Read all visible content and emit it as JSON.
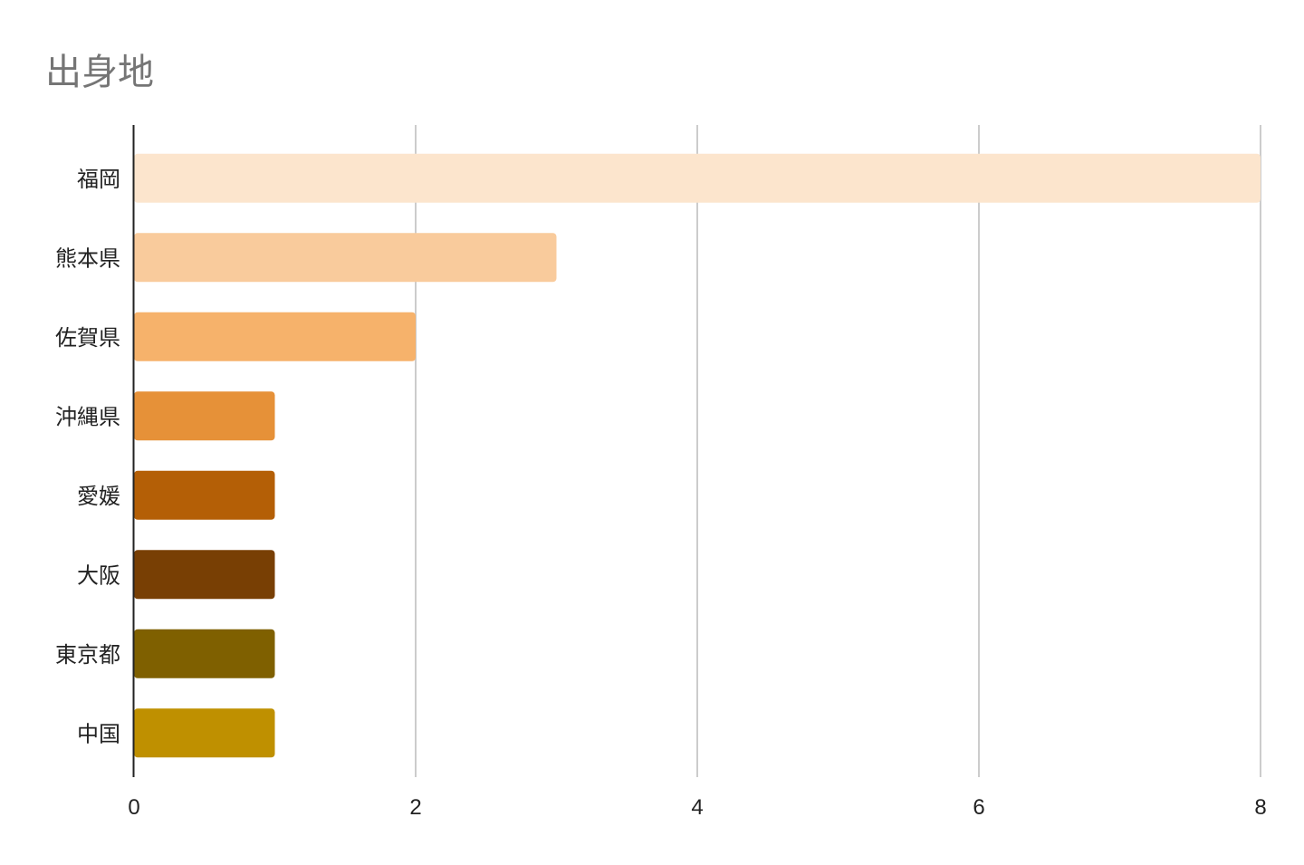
{
  "chart_data": {
    "type": "bar",
    "orientation": "horizontal",
    "title": "出身地",
    "xlabel": "",
    "ylabel": "",
    "categories": [
      "福岡",
      "熊本県",
      "佐賀県",
      "沖縄県",
      "愛媛",
      "大阪",
      "東京都",
      "中国"
    ],
    "values": [
      8,
      3,
      2,
      1,
      1,
      1,
      1,
      1
    ],
    "colors": [
      "#fce5cd",
      "#f9cb9c",
      "#f6b26b",
      "#e69138",
      "#b45f06",
      "#783f04",
      "#7f6000",
      "#bf9000"
    ],
    "xlim": [
      0,
      8
    ],
    "xticks": [
      0,
      2,
      4,
      6,
      8
    ],
    "grid": true,
    "legend": "none"
  }
}
